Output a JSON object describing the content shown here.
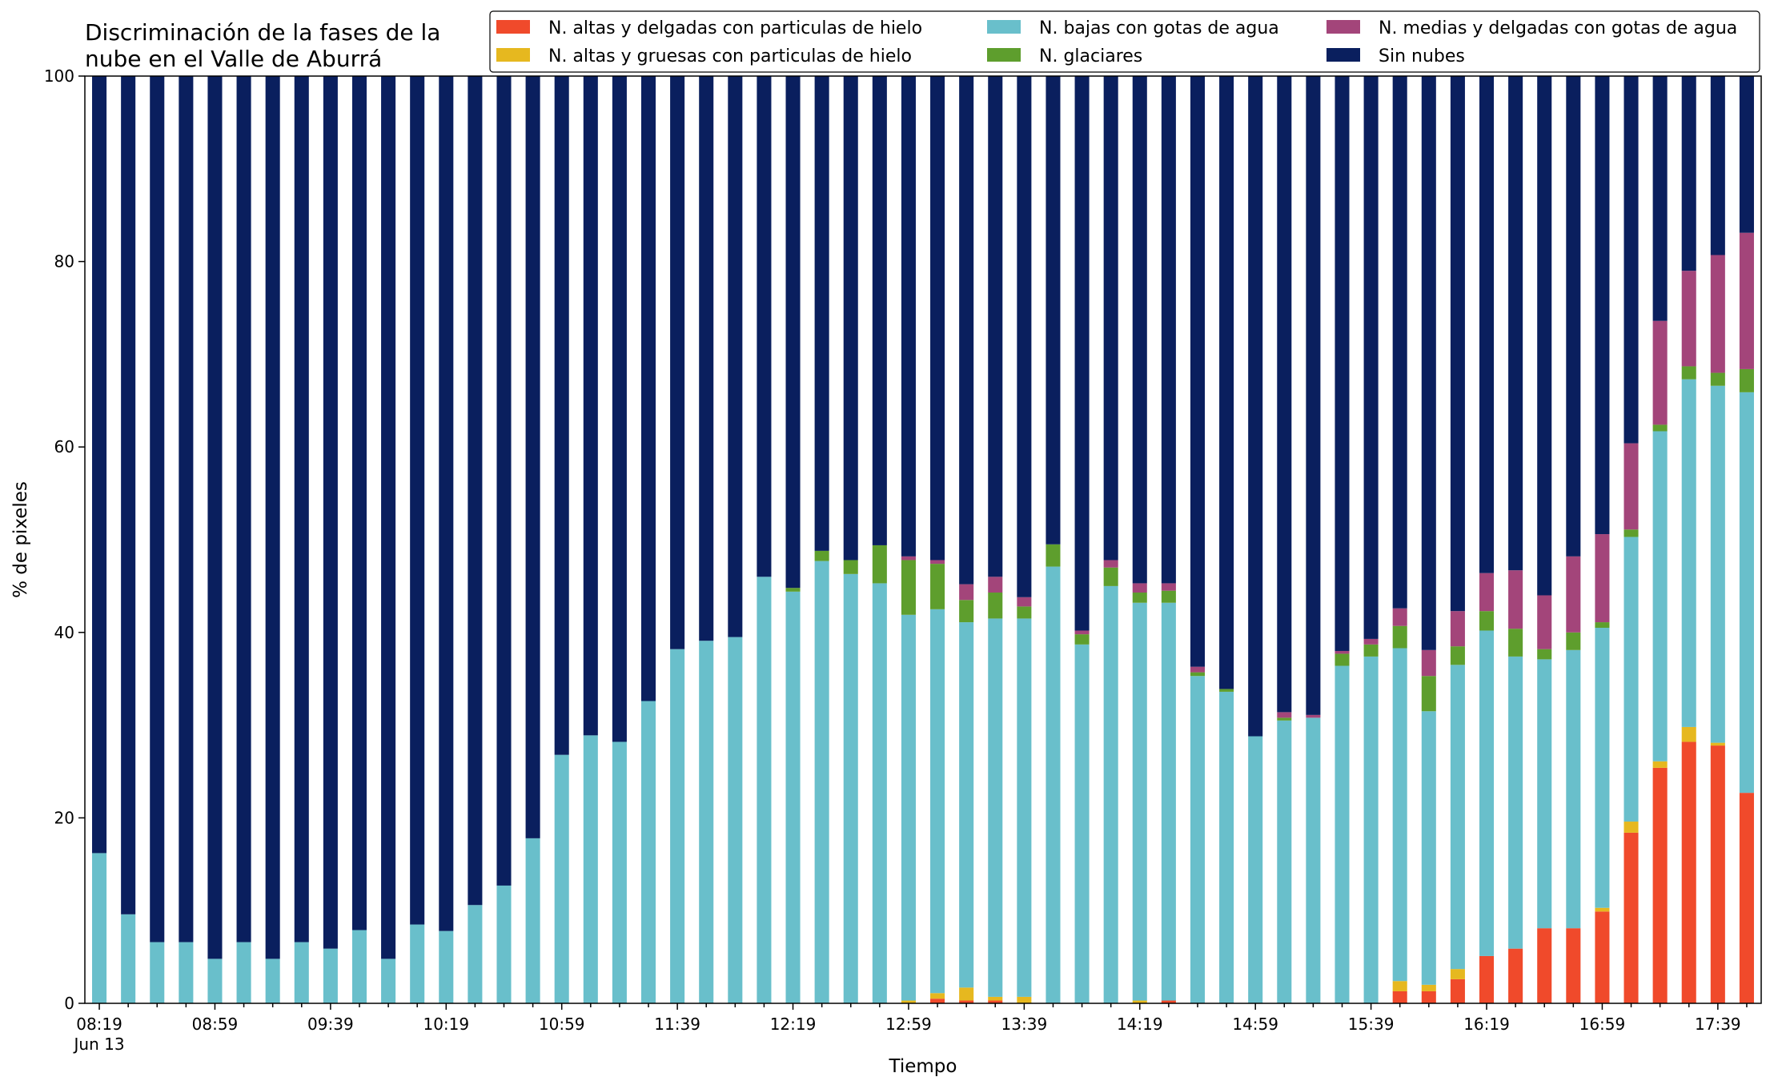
{
  "chart_data": {
    "type": "bar",
    "stacked": true,
    "title": "Discriminación de la fases de la\nnube en el Valle de Aburrá",
    "title_lines": [
      "Discriminación de la fases de la",
      "nube en el Valle de Aburrá"
    ],
    "xlabel": "Tiempo",
    "ylabel": "% de pixeles",
    "ylim": [
      0,
      100
    ],
    "yticks": [
      "0",
      "20",
      "40",
      "60",
      "80",
      "100"
    ],
    "xtick_labels": [
      {
        "index": 0,
        "label": "08:19",
        "sublabel": "Jun 13"
      },
      {
        "index": 4,
        "label": "08:59"
      },
      {
        "index": 8,
        "label": "09:39"
      },
      {
        "index": 12,
        "label": "10:19"
      },
      {
        "index": 16,
        "label": "10:59"
      },
      {
        "index": 20,
        "label": "11:39"
      },
      {
        "index": 24,
        "label": "12:19"
      },
      {
        "index": 28,
        "label": "12:59"
      },
      {
        "index": 32,
        "label": "13:39"
      },
      {
        "index": 36,
        "label": "14:19"
      },
      {
        "index": 40,
        "label": "14:59"
      },
      {
        "index": 44,
        "label": "15:39"
      },
      {
        "index": 48,
        "label": "16:19"
      },
      {
        "index": 52,
        "label": "16:59"
      },
      {
        "index": 56,
        "label": "17:39"
      }
    ],
    "legend_placement": "upper right",
    "grid": false,
    "series": [
      {
        "name": "N. altas y delgadas con particulas de hielo",
        "color": "#f04a2b",
        "values": [
          0,
          0,
          0,
          0,
          0,
          0,
          0,
          0,
          0,
          0,
          0,
          0,
          0,
          0,
          0,
          0,
          0,
          0,
          0,
          0,
          0,
          0,
          0,
          0,
          0,
          0,
          0,
          0,
          0,
          0.5,
          0.3,
          0.3,
          0,
          0,
          0,
          0,
          0,
          0.3,
          0,
          0,
          0,
          0,
          0,
          0,
          0,
          1.3,
          1.3,
          2.6,
          5.1,
          5.9,
          8.1,
          8.1,
          9.9,
          18.4,
          25.4,
          28.2,
          27.8,
          22.7
        ]
      },
      {
        "name": "N. altas y gruesas con particulas de hielo",
        "color": "#e6b81f",
        "values": [
          0,
          0,
          0,
          0,
          0,
          0,
          0,
          0,
          0,
          0,
          0,
          0,
          0,
          0,
          0,
          0,
          0,
          0,
          0,
          0,
          0,
          0,
          0,
          0,
          0,
          0,
          0,
          0,
          0.3,
          0.6,
          1.4,
          0.4,
          0.7,
          0,
          0,
          0,
          0.3,
          0,
          0,
          0,
          0,
          0,
          0,
          0,
          0,
          1.1,
          0.7,
          1.1,
          0,
          0,
          0,
          0,
          0.4,
          1.2,
          0.7,
          1.6,
          0.3,
          0
        ]
      },
      {
        "name": "N. bajas con gotas de agua",
        "color": "#69bfcb",
        "values": [
          16.2,
          9.6,
          6.6,
          6.6,
          4.8,
          6.6,
          4.8,
          6.6,
          5.9,
          7.9,
          4.8,
          8.5,
          7.8,
          10.6,
          12.7,
          17.8,
          26.8,
          28.9,
          28.2,
          32.6,
          38.2,
          39.1,
          39.5,
          46.0,
          44.4,
          47.7,
          46.3,
          45.3,
          41.6,
          41.4,
          39.4,
          40.8,
          40.8,
          47.1,
          38.7,
          45.0,
          42.9,
          42.9,
          35.3,
          33.6,
          28.8,
          30.5,
          30.8,
          36.4,
          37.4,
          35.9,
          29.5,
          32.8,
          35.1,
          31.5,
          29.0,
          30.0,
          30.2,
          30.7,
          35.6,
          37.5,
          38.5,
          43.2
        ]
      },
      {
        "name": "N. glaciares",
        "color": "#5e9e2d",
        "values": [
          0,
          0,
          0,
          0,
          0,
          0,
          0,
          0,
          0,
          0,
          0,
          0,
          0,
          0,
          0,
          0,
          0,
          0,
          0,
          0,
          0,
          0,
          0,
          0,
          0.4,
          1.1,
          1.5,
          4.1,
          5.9,
          4.9,
          2.4,
          2.8,
          1.3,
          2.4,
          1.1,
          2.0,
          1.1,
          1.3,
          0.4,
          0.3,
          0,
          0.3,
          0,
          1.3,
          1.3,
          2.4,
          3.8,
          2.0,
          2.1,
          3.0,
          1.1,
          1.9,
          0.6,
          0.8,
          0.7,
          1.4,
          1.4,
          2.5
        ]
      },
      {
        "name": "N. medias y delgadas con gotas de agua",
        "color": "#a3457a",
        "values": [
          0,
          0,
          0,
          0,
          0,
          0,
          0,
          0,
          0,
          0,
          0,
          0,
          0,
          0,
          0,
          0,
          0,
          0,
          0,
          0,
          0,
          0,
          0,
          0,
          0,
          0,
          0,
          0,
          0.4,
          0.4,
          1.7,
          1.7,
          1.0,
          0,
          0.4,
          0.8,
          1.0,
          0.8,
          0.6,
          0,
          0,
          0.6,
          0.3,
          0.3,
          0.6,
          1.9,
          2.8,
          3.8,
          4.1,
          6.3,
          5.8,
          8.2,
          9.5,
          9.3,
          11.2,
          10.3,
          12.7,
          14.7
        ]
      },
      {
        "name": "Sin nubes",
        "color": "#0a1f5e",
        "values": [
          83.8,
          90.4,
          93.4,
          93.4,
          95.2,
          93.4,
          95.2,
          93.4,
          94.1,
          92.1,
          95.2,
          91.5,
          92.2,
          89.4,
          87.3,
          82.2,
          73.2,
          71.1,
          71.8,
          67.4,
          61.8,
          60.9,
          60.5,
          54.0,
          55.2,
          51.2,
          52.2,
          50.6,
          51.8,
          52.2,
          54.8,
          54.0,
          56.2,
          50.5,
          59.8,
          52.2,
          54.7,
          54.7,
          63.7,
          66.1,
          71.2,
          68.6,
          68.9,
          62.0,
          60.7,
          57.4,
          61.9,
          57.7,
          53.6,
          53.3,
          56.0,
          51.8,
          49.4,
          39.6,
          26.4,
          21.0,
          19.3,
          16.9
        ]
      }
    ]
  }
}
